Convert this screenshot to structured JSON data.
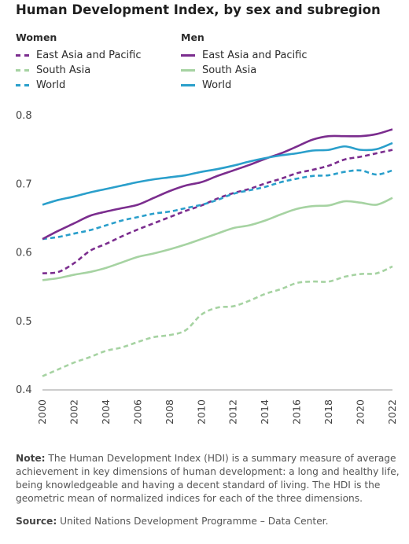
{
  "title": "Human Development Index, by sex and subregion",
  "legend": {
    "women_title": "Women",
    "men_title": "Men",
    "women_items": [
      {
        "label": "East Asia and Pacific",
        "color": "#7b2d8e"
      },
      {
        "label": "South Asia",
        "color": "#a6d3a2"
      },
      {
        "label": "World",
        "color": "#2a9fcb"
      }
    ],
    "men_items": [
      {
        "label": "East Asia and Pacific",
        "color": "#7b2d8e"
      },
      {
        "label": "South Asia",
        "color": "#a6d3a2"
      },
      {
        "label": "World",
        "color": "#2a9fcb"
      }
    ]
  },
  "chart_data": {
    "type": "line",
    "title": "Human Development Index, by sex and subregion",
    "xlabel": "",
    "ylabel": "",
    "ylim": [
      0.4,
      0.8
    ],
    "yticks": [
      "0.4",
      "0.5",
      "0.6",
      "0.7",
      "0.8"
    ],
    "xticks": [
      "2000",
      "2002",
      "2004",
      "2006",
      "2008",
      "2010",
      "2012",
      "2014",
      "2016",
      "2018",
      "2020",
      "2022"
    ],
    "grid": false,
    "x": [
      2000,
      2001,
      2002,
      2003,
      2004,
      2005,
      2006,
      2007,
      2008,
      2009,
      2010,
      2011,
      2012,
      2013,
      2014,
      2015,
      2016,
      2017,
      2018,
      2019,
      2020,
      2021,
      2022
    ],
    "series": [
      {
        "group": "Women",
        "name": "East Asia and Pacific",
        "style": "dashed",
        "color": "#7b2d8e",
        "values": [
          0.57,
          0.572,
          0.585,
          0.603,
          0.613,
          0.624,
          0.634,
          0.643,
          0.652,
          0.661,
          0.669,
          0.679,
          0.687,
          0.693,
          0.701,
          0.708,
          0.716,
          0.721,
          0.727,
          0.736,
          0.74,
          0.745,
          0.75
        ]
      },
      {
        "group": "Women",
        "name": "South Asia",
        "style": "dashed",
        "color": "#a6d3a2",
        "values": [
          0.42,
          0.43,
          0.44,
          0.448,
          0.457,
          0.462,
          0.47,
          0.477,
          0.48,
          0.487,
          0.51,
          0.52,
          0.522,
          0.53,
          0.54,
          0.547,
          0.556,
          0.558,
          0.558,
          0.565,
          0.569,
          0.57,
          0.58
        ]
      },
      {
        "group": "Women",
        "name": "World",
        "style": "dashed",
        "color": "#2a9fcb",
        "values": [
          0.62,
          0.623,
          0.628,
          0.633,
          0.64,
          0.647,
          0.652,
          0.657,
          0.66,
          0.665,
          0.67,
          0.677,
          0.686,
          0.691,
          0.696,
          0.703,
          0.708,
          0.712,
          0.713,
          0.718,
          0.72,
          0.714,
          0.72
        ]
      },
      {
        "group": "Men",
        "name": "East Asia and Pacific",
        "style": "solid",
        "color": "#7b2d8e",
        "values": [
          0.62,
          0.632,
          0.643,
          0.654,
          0.66,
          0.665,
          0.67,
          0.68,
          0.69,
          0.698,
          0.703,
          0.712,
          0.72,
          0.728,
          0.737,
          0.745,
          0.755,
          0.765,
          0.77,
          0.77,
          0.77,
          0.773,
          0.78
        ]
      },
      {
        "group": "Men",
        "name": "South Asia",
        "style": "solid",
        "color": "#a6d3a2",
        "values": [
          0.56,
          0.563,
          0.568,
          0.572,
          0.578,
          0.586,
          0.594,
          0.599,
          0.605,
          0.612,
          0.62,
          0.628,
          0.636,
          0.64,
          0.647,
          0.656,
          0.664,
          0.668,
          0.669,
          0.675,
          0.673,
          0.67,
          0.68
        ]
      },
      {
        "group": "Men",
        "name": "World",
        "style": "solid",
        "color": "#2a9fcb",
        "values": [
          0.67,
          0.677,
          0.682,
          0.688,
          0.693,
          0.698,
          0.703,
          0.707,
          0.71,
          0.713,
          0.718,
          0.722,
          0.727,
          0.733,
          0.738,
          0.742,
          0.745,
          0.749,
          0.75,
          0.755,
          0.75,
          0.751,
          0.76
        ]
      }
    ]
  },
  "note": {
    "label": "Note:",
    "text": " The Human Development Index (HDI) is a summary measure of average achievement in key dimensions of human development: a long and healthy life, being knowledgeable and having a decent standard of living. The HDI is the geometric mean of normalized indices for each of the three dimensions."
  },
  "source": {
    "label": "Source:",
    "text": " United Nations Development Programme – Data Center."
  }
}
